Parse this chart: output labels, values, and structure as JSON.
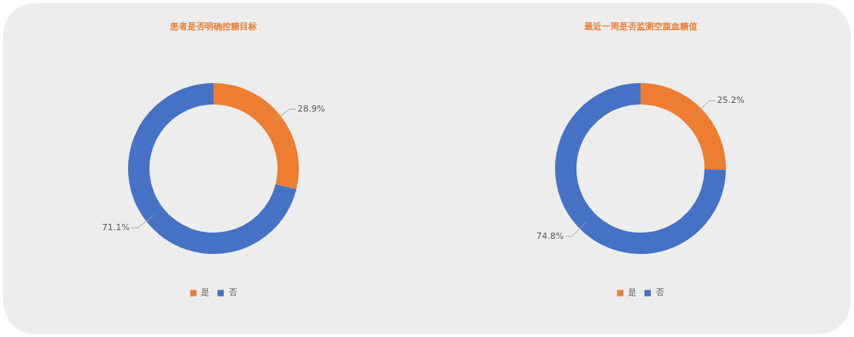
{
  "chart_data": [
    {
      "type": "donut",
      "title": "患者是否明确控糖目标",
      "categories": [
        "是",
        "否"
      ],
      "values": [
        28.9,
        71.1
      ],
      "colors": [
        "#ed7d31",
        "#4472c4"
      ],
      "value_labels": [
        "28.9%",
        "71.1%"
      ],
      "legend": "bottom"
    },
    {
      "type": "donut",
      "title": "最近一周是否监测空腹血糖值",
      "categories": [
        "是",
        "否"
      ],
      "values": [
        25.2,
        74.8
      ],
      "colors": [
        "#ed7d31",
        "#4472c4"
      ],
      "value_labels": [
        "25.2%",
        "74.8%"
      ],
      "legend": "bottom"
    }
  ]
}
